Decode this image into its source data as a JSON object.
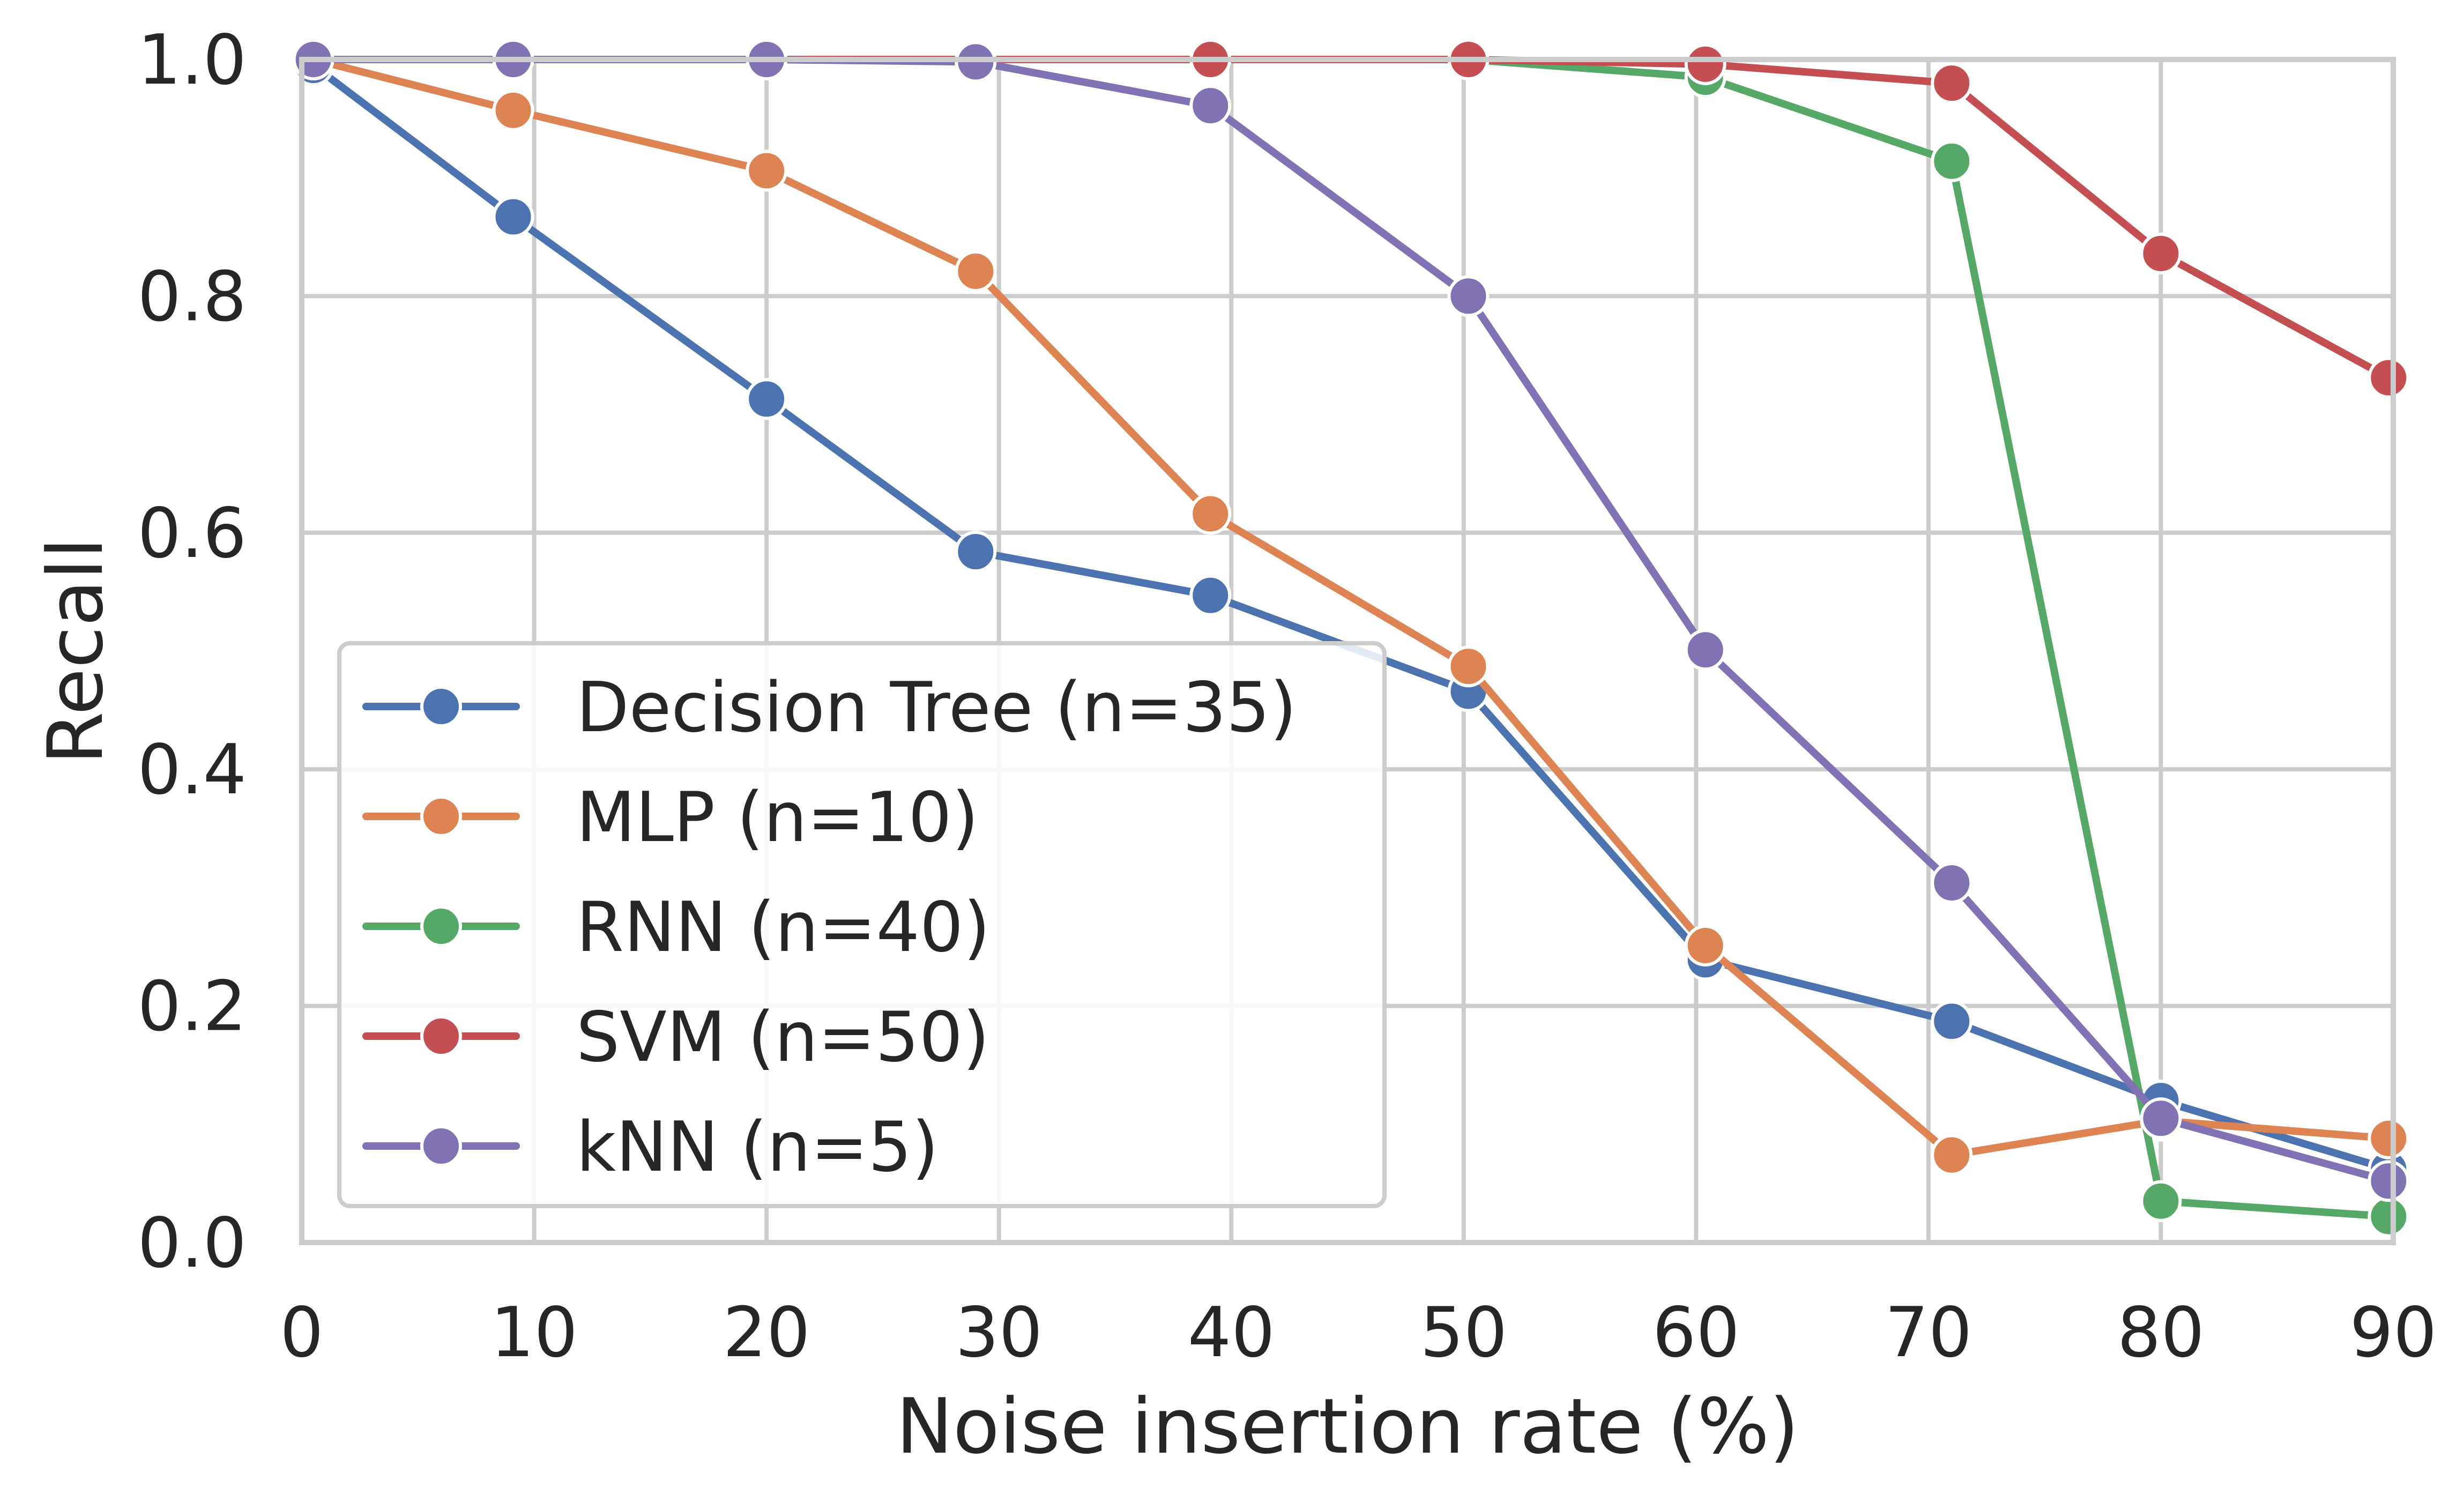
{
  "chart_data": {
    "type": "line",
    "title": "",
    "xlabel": "Noise insertion rate (%)",
    "ylabel": "Recall",
    "xlim": [
      0,
      90
    ],
    "ylim": [
      0.0,
      1.0
    ],
    "xticks": [
      "0",
      "10",
      "20",
      "30",
      "40",
      "50",
      "60",
      "70",
      "80",
      "90"
    ],
    "yticks": [
      "0.0",
      "0.2",
      "0.4",
      "0.6",
      "0.8",
      "1.0"
    ],
    "grid": true,
    "legend_position": "lower-left",
    "series": [
      {
        "name": "Decision Tree (n=35)",
        "color": "#4c72b0",
        "points": [
          [
            0.5,
            0.995
          ],
          [
            9.1,
            0.867
          ],
          [
            20.0,
            0.713
          ],
          [
            29.0,
            0.584
          ],
          [
            39.1,
            0.547
          ],
          [
            50.2,
            0.466
          ],
          [
            60.4,
            0.239
          ],
          [
            71.0,
            0.187
          ],
          [
            80.0,
            0.12
          ],
          [
            89.8,
            0.062
          ]
        ]
      },
      {
        "name": "MLP (n=10)",
        "color": "#dd8452",
        "points": [
          [
            0.5,
            1.0
          ],
          [
            9.1,
            0.957
          ],
          [
            20.0,
            0.906
          ],
          [
            29.0,
            0.821
          ],
          [
            39.1,
            0.616
          ],
          [
            50.2,
            0.487
          ],
          [
            60.4,
            0.251
          ],
          [
            71.0,
            0.074
          ],
          [
            80.0,
            0.103
          ],
          [
            89.8,
            0.088
          ]
        ]
      },
      {
        "name": "RNN (n=40)",
        "color": "#55a868",
        "points": [
          [
            0.5,
            1.0
          ],
          [
            9.1,
            1.0
          ],
          [
            20.0,
            1.0
          ],
          [
            29.0,
            1.0
          ],
          [
            39.1,
            1.0
          ],
          [
            50.2,
            1.0
          ],
          [
            60.4,
            0.985
          ],
          [
            71.0,
            0.914
          ],
          [
            80.0,
            0.035
          ],
          [
            89.8,
            0.022
          ]
        ]
      },
      {
        "name": "SVM (n=50)",
        "color": "#c44e52",
        "points": [
          [
            0.5,
            1.0
          ],
          [
            9.1,
            1.0
          ],
          [
            20.0,
            1.0
          ],
          [
            29.0,
            1.0
          ],
          [
            39.1,
            1.0
          ],
          [
            50.2,
            1.0
          ],
          [
            60.4,
            0.996
          ],
          [
            71.0,
            0.98
          ],
          [
            80.0,
            0.836
          ],
          [
            89.8,
            0.731
          ]
        ]
      },
      {
        "name": "kNN (n=5)",
        "color": "#8172b3",
        "points": [
          [
            0.5,
            1.0
          ],
          [
            9.1,
            1.0
          ],
          [
            20.0,
            1.0
          ],
          [
            29.0,
            0.998
          ],
          [
            39.1,
            0.961
          ],
          [
            50.2,
            0.8
          ],
          [
            60.4,
            0.501
          ],
          [
            71.0,
            0.304
          ],
          [
            80.0,
            0.105
          ],
          [
            89.8,
            0.052
          ]
        ]
      }
    ]
  }
}
